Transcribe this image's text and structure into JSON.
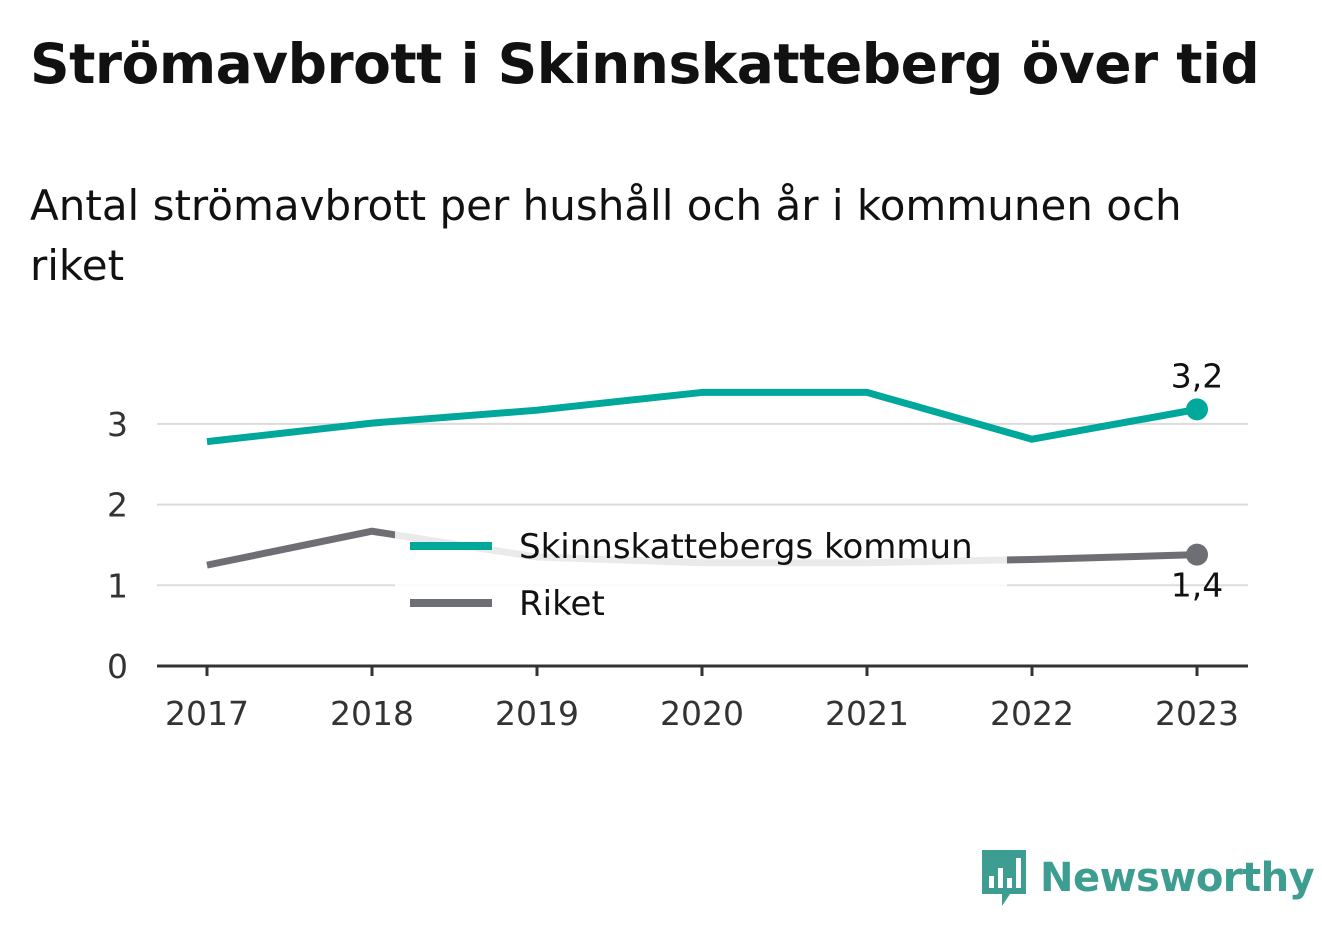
{
  "title": "Strömavbrott i Skinnskatteberg över tid",
  "subtitle": "Antal strömavbrott per hushåll och år i kommunen och riket",
  "brand": {
    "name": "Newsworthy",
    "icon": "bar-chart-bubble-icon",
    "color": "#3c9d90"
  },
  "chart_data": {
    "type": "line",
    "x": [
      "2017",
      "2018",
      "2019",
      "2020",
      "2021",
      "2022",
      "2023"
    ],
    "ylim": [
      0,
      3.5
    ],
    "yticks": [
      "0",
      "1",
      "2",
      "3"
    ],
    "grid": true,
    "legend_position": "center",
    "series": [
      {
        "name": "Skinnskattebergs kommun",
        "color": "#00a79b",
        "values": [
          2.78,
          3.01,
          3.17,
          3.39,
          3.39,
          2.81,
          3.18
        ],
        "end_label": "3,2"
      },
      {
        "name": "Riket",
        "color": "#6e6e75",
        "values": [
          1.25,
          1.67,
          1.35,
          1.28,
          1.28,
          1.32,
          1.38
        ],
        "end_label": "1,4"
      }
    ]
  }
}
